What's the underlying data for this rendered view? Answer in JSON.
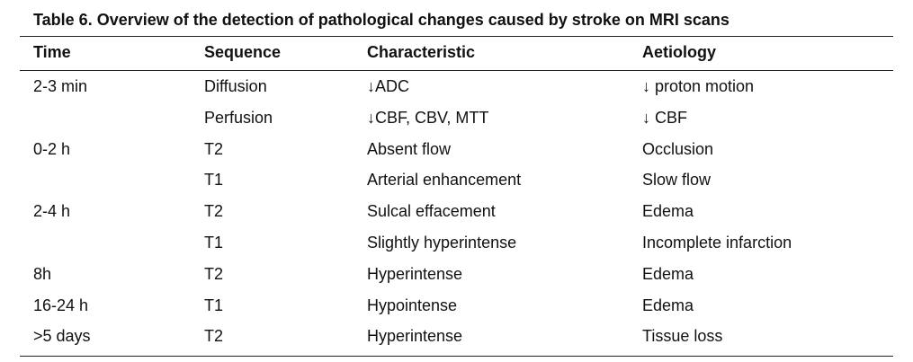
{
  "table": {
    "caption": "Table 6. Overview of the detection of pathological changes caused by stroke on MRI scans",
    "headers": [
      "Time",
      "Sequence",
      "Characteristic",
      "Aetiology"
    ],
    "rows": [
      [
        "2-3 min",
        "Diffusion",
        "↓ADC",
        "↓ proton motion"
      ],
      [
        "",
        "Perfusion",
        "↓CBF, CBV, MTT",
        "↓ CBF"
      ],
      [
        "0-2 h",
        "T2",
        "Absent flow",
        "Occlusion"
      ],
      [
        "",
        "T1",
        "Arterial enhancement",
        "Slow flow"
      ],
      [
        "2-4 h",
        "T2",
        "Sulcal effacement",
        "Edema"
      ],
      [
        "",
        "T1",
        "Slightly hyperintense",
        "Incomplete infarction"
      ],
      [
        "8h",
        "T2",
        "Hyperintense",
        "Edema"
      ],
      [
        "16-24 h",
        "T1",
        "Hypointense",
        "Edema"
      ],
      [
        ">5 days",
        "T2",
        "Hyperintense",
        "Tissue loss"
      ]
    ]
  }
}
